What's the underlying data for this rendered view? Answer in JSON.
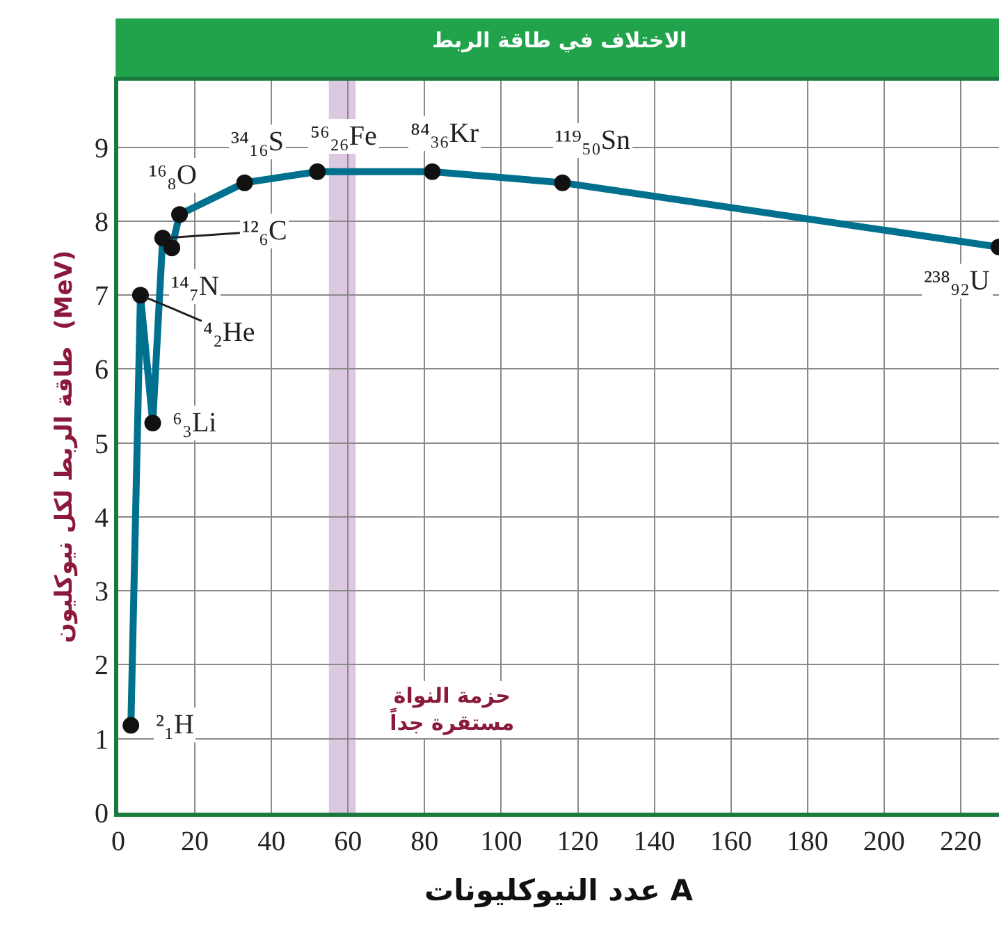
{
  "chart_data": {
    "type": "line",
    "title": "الاختلاف في طاقة الربط",
    "xlabel": "عدد النيوكليونات A",
    "ylabel": "طاقة الربط لكل نيوكليون  (MeV)",
    "x": [
      3.3,
      5.8,
      9,
      11.6,
      14,
      16,
      33,
      52,
      82,
      116,
      230
    ],
    "series": [
      {
        "color": "#00708f",
        "values": [
          1.18,
          7.0,
          5.27,
          7.77,
          7.64,
          8.09,
          8.52,
          8.67,
          8.67,
          8.52,
          7.65
        ]
      }
    ],
    "xlim": [
      0,
      230
    ],
    "ylim": [
      0,
      9.9
    ],
    "xticks": [
      0,
      20,
      40,
      60,
      80,
      100,
      120,
      140,
      160,
      180,
      200,
      220
    ],
    "yticks": [
      0,
      1,
      2,
      3,
      4,
      5,
      6,
      7,
      8,
      9
    ],
    "grid": true,
    "marker": "circle",
    "line_style": "solid",
    "bands": [
      {
        "axis": "x",
        "from": 55,
        "to": 62,
        "label": "حزمة النواة\nمستقرة جداً",
        "color": "#dcc8e0"
      }
    ],
    "annotations": [
      {
        "text": "²₁H",
        "x": 3.3,
        "y": 1.18
      },
      {
        "text": "⁴₂He",
        "x": 5.8,
        "y": 7.0
      },
      {
        "text": "⁶₃Li",
        "x": 9,
        "y": 5.27
      },
      {
        "text": "¹²₆C",
        "x": 11.6,
        "y": 7.77
      },
      {
        "text": "¹⁴₇N",
        "x": 14,
        "y": 7.64
      },
      {
        "text": "¹⁶₈O",
        "x": 16,
        "y": 8.09
      },
      {
        "text": "³⁴₁₆S",
        "x": 33,
        "y": 8.52
      },
      {
        "text": "⁵⁶₂₆Fe",
        "x": 52,
        "y": 8.67
      },
      {
        "text": "⁸⁴₃₆Kr",
        "x": 82,
        "y": 8.67
      },
      {
        "text": "¹¹⁹₅₀Sn",
        "x": 116,
        "y": 8.52
      },
      {
        "text": "²³⁸₉₂U",
        "x": 230,
        "y": 7.65
      }
    ]
  }
}
